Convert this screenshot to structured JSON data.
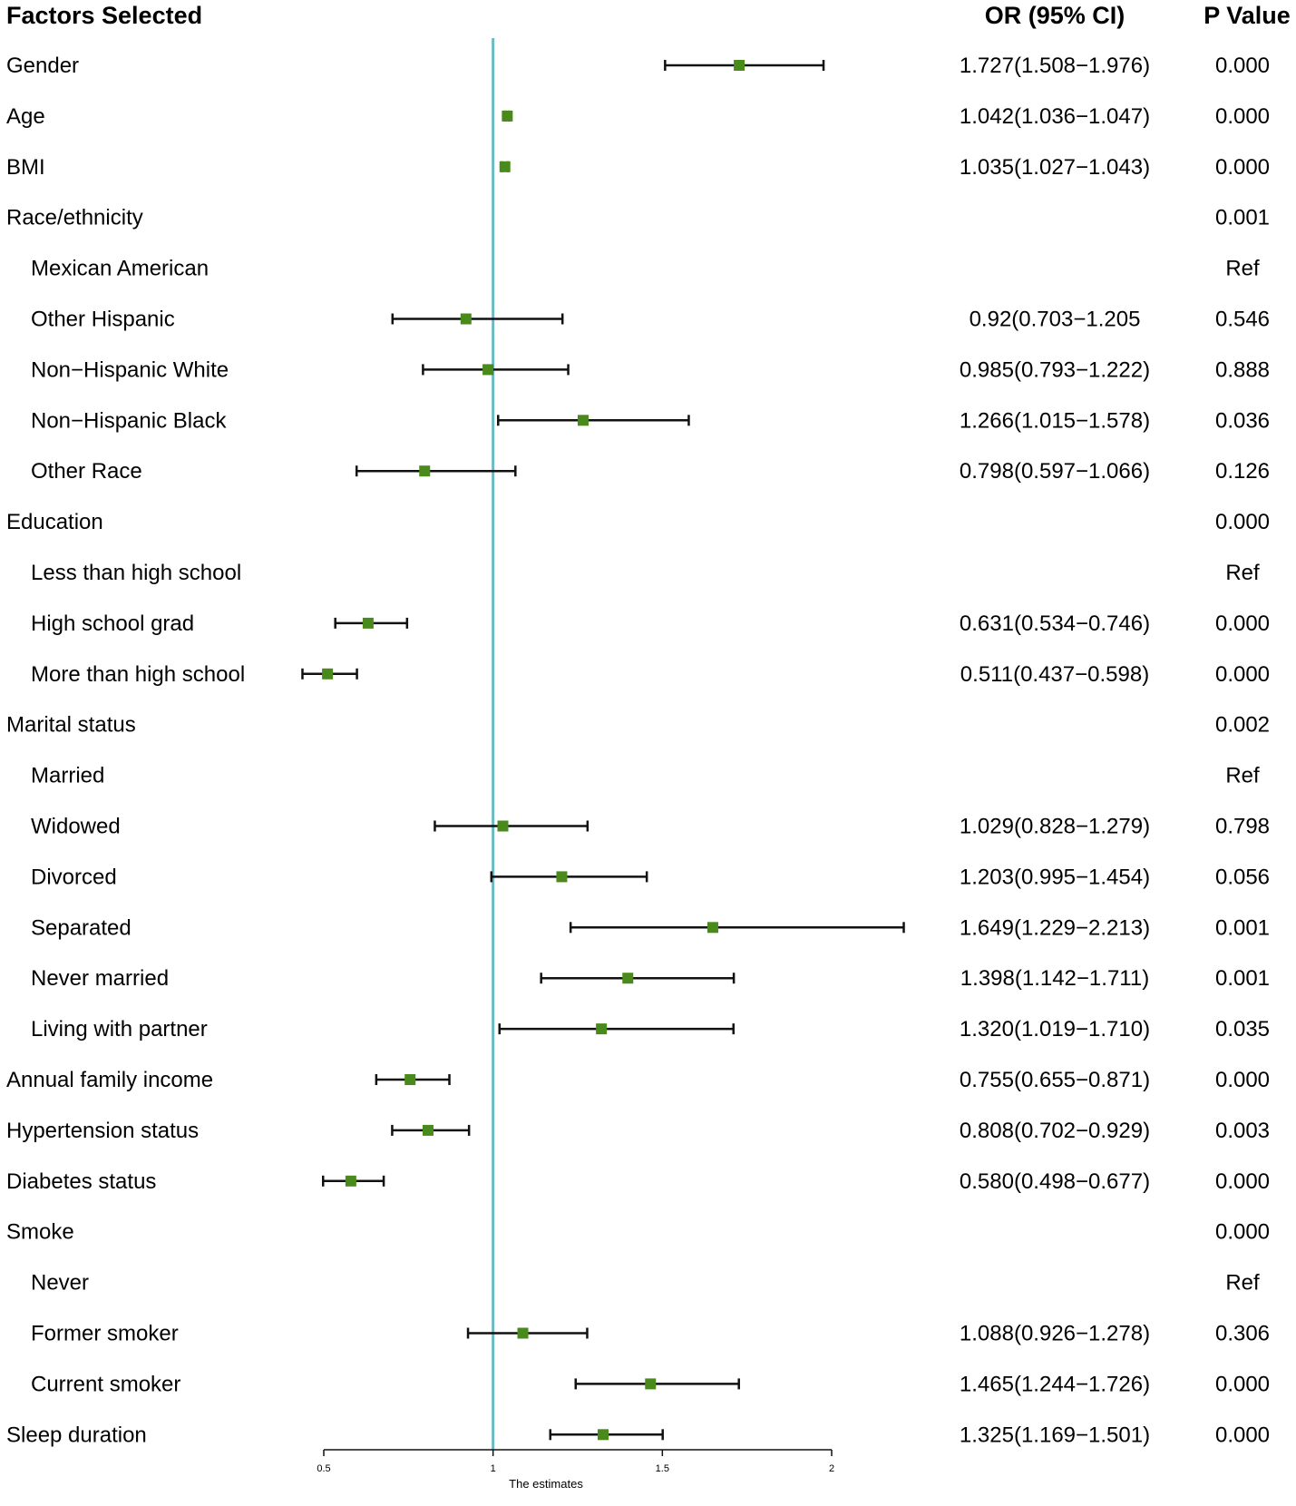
{
  "chart_data": {
    "type": "forest",
    "title": "",
    "xlabel": "The estimates",
    "xlim": [
      0.5,
      2.0
    ],
    "xticks": [
      "0.5",
      "1",
      "1.5",
      "2"
    ],
    "reference_value": 1,
    "headers": {
      "factor": "Factors Selected",
      "or": "OR (95% CI)",
      "p": "P Value"
    },
    "rows": [
      {
        "label": "Gender",
        "indent": 0,
        "est": 1.727,
        "lo": 1.508,
        "hi": 1.976,
        "or_text": "1.727(1.508−1.976)",
        "p": "0.000"
      },
      {
        "label": "Age",
        "indent": 0,
        "est": 1.042,
        "lo": 1.036,
        "hi": 1.047,
        "or_text": "1.042(1.036−1.047)",
        "p": "0.000"
      },
      {
        "label": "BMI",
        "indent": 0,
        "est": 1.035,
        "lo": 1.027,
        "hi": 1.043,
        "or_text": "1.035(1.027−1.043)",
        "p": "0.000"
      },
      {
        "label": "Race/ethnicity",
        "indent": 0,
        "est": null,
        "lo": null,
        "hi": null,
        "or_text": "",
        "p": "0.001"
      },
      {
        "label": "Mexican American",
        "indent": 1,
        "est": null,
        "lo": null,
        "hi": null,
        "or_text": "",
        "p": "Ref"
      },
      {
        "label": "Other Hispanic",
        "indent": 1,
        "est": 0.92,
        "lo": 0.703,
        "hi": 1.205,
        "or_text": "0.92(0.703−1.205",
        "p": "0.546"
      },
      {
        "label": "Non−Hispanic White",
        "indent": 1,
        "est": 0.985,
        "lo": 0.793,
        "hi": 1.222,
        "or_text": "0.985(0.793−1.222)",
        "p": "0.888"
      },
      {
        "label": "Non−Hispanic Black",
        "indent": 1,
        "est": 1.266,
        "lo": 1.015,
        "hi": 1.578,
        "or_text": "1.266(1.015−1.578)",
        "p": "0.036"
      },
      {
        "label": "Other Race",
        "indent": 1,
        "est": 0.798,
        "lo": 0.597,
        "hi": 1.066,
        "or_text": "0.798(0.597−1.066)",
        "p": "0.126"
      },
      {
        "label": "Education",
        "indent": 0,
        "est": null,
        "lo": null,
        "hi": null,
        "or_text": "",
        "p": "0.000"
      },
      {
        "label": "Less than high school",
        "indent": 1,
        "est": null,
        "lo": null,
        "hi": null,
        "or_text": "",
        "p": "Ref"
      },
      {
        "label": "High school grad",
        "indent": 1,
        "est": 0.631,
        "lo": 0.534,
        "hi": 0.746,
        "or_text": "0.631(0.534−0.746)",
        "p": "0.000"
      },
      {
        "label": "More than high school",
        "indent": 1,
        "est": 0.511,
        "lo": 0.437,
        "hi": 0.598,
        "or_text": "0.511(0.437−0.598)",
        "p": "0.000"
      },
      {
        "label": "Marital status",
        "indent": 0,
        "est": null,
        "lo": null,
        "hi": null,
        "or_text": "",
        "p": "0.002"
      },
      {
        "label": "Married",
        "indent": 1,
        "est": null,
        "lo": null,
        "hi": null,
        "or_text": "",
        "p": "Ref"
      },
      {
        "label": "Widowed",
        "indent": 1,
        "est": 1.029,
        "lo": 0.828,
        "hi": 1.279,
        "or_text": "1.029(0.828−1.279)",
        "p": "0.798"
      },
      {
        "label": "Divorced",
        "indent": 1,
        "est": 1.203,
        "lo": 0.995,
        "hi": 1.454,
        "or_text": "1.203(0.995−1.454)",
        "p": "0.056"
      },
      {
        "label": "Separated",
        "indent": 1,
        "est": 1.649,
        "lo": 1.229,
        "hi": 2.213,
        "or_text": "1.649(1.229−2.213)",
        "p": "0.001"
      },
      {
        "label": "Never married",
        "indent": 1,
        "est": 1.398,
        "lo": 1.142,
        "hi": 1.711,
        "or_text": "1.398(1.142−1.711)",
        "p": "0.001"
      },
      {
        "label": "Living with partner",
        "indent": 1,
        "est": 1.32,
        "lo": 1.019,
        "hi": 1.71,
        "or_text": "1.320(1.019−1.710)",
        "p": "0.035"
      },
      {
        "label": "Annual family income",
        "indent": 0,
        "est": 0.755,
        "lo": 0.655,
        "hi": 0.871,
        "or_text": "0.755(0.655−0.871)",
        "p": "0.000"
      },
      {
        "label": "Hypertension status",
        "indent": 0,
        "est": 0.808,
        "lo": 0.702,
        "hi": 0.929,
        "or_text": "0.808(0.702−0.929)",
        "p": "0.003"
      },
      {
        "label": "Diabetes status",
        "indent": 0,
        "est": 0.58,
        "lo": 0.498,
        "hi": 0.677,
        "or_text": "0.580(0.498−0.677)",
        "p": "0.000"
      },
      {
        "label": "Smoke",
        "indent": 0,
        "est": null,
        "lo": null,
        "hi": null,
        "or_text": "",
        "p": "0.000"
      },
      {
        "label": "Never",
        "indent": 1,
        "est": null,
        "lo": null,
        "hi": null,
        "or_text": "",
        "p": "Ref"
      },
      {
        "label": "Former smoker",
        "indent": 1,
        "est": 1.088,
        "lo": 0.926,
        "hi": 1.278,
        "or_text": "1.088(0.926−1.278)",
        "p": "0.306"
      },
      {
        "label": "Current smoker",
        "indent": 1,
        "est": 1.465,
        "lo": 1.244,
        "hi": 1.726,
        "or_text": "1.465(1.244−1.726)",
        "p": "0.000"
      },
      {
        "label": "Sleep duration",
        "indent": 0,
        "est": 1.325,
        "lo": 1.169,
        "hi": 1.501,
        "or_text": "1.325(1.169−1.501)",
        "p": "0.000"
      }
    ]
  },
  "colors": {
    "marker": "#4a8a1c",
    "reference_line": "#6bb8c6",
    "ci_line": "#111111"
  }
}
